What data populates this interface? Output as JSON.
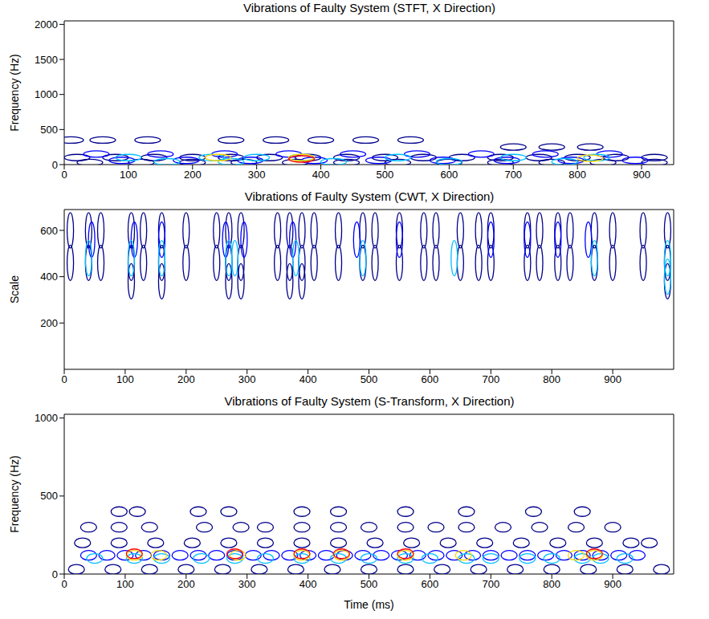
{
  "chart_data": [
    {
      "type": "contour",
      "title": "Vibrations of Faulty System (STFT, X Direction)",
      "ylabel": "Frequency (Hz)",
      "xlim": [
        0,
        950
      ],
      "xticks": [
        0,
        100,
        200,
        300,
        400,
        500,
        600,
        700,
        800,
        900
      ],
      "ylim": [
        0,
        2050
      ],
      "yticks": [
        0,
        500,
        1000,
        1500,
        2000
      ],
      "series": [
        {
          "color": "#00008b",
          "x": [
            10,
            60,
            130,
            260,
            330,
            400,
            470,
            540,
            700,
            760,
            820,
            20,
            80,
            140,
            200,
            260,
            320,
            380,
            440,
            500,
            560,
            620,
            680,
            740,
            800,
            860,
            920,
            40,
            120,
            200,
            280,
            360,
            440,
            520,
            600,
            680,
            760,
            840,
            920
          ],
          "values": [
            350,
            350,
            350,
            350,
            350,
            350,
            350,
            350,
            250,
            250,
            250,
            100,
            100,
            100,
            100,
            100,
            100,
            100,
            100,
            100,
            100,
            100,
            100,
            100,
            100,
            100,
            100,
            30,
            30,
            30,
            30,
            30,
            30,
            30,
            30,
            30,
            30,
            30,
            30
          ]
        },
        {
          "color": "#0000ff",
          "x": [
            50,
            150,
            250,
            350,
            450,
            550,
            650,
            750,
            850,
            90,
            190,
            290,
            390,
            490,
            590,
            690,
            790,
            890
          ],
          "values": [
            150,
            150,
            150,
            150,
            150,
            150,
            150,
            150,
            150,
            60,
            60,
            60,
            60,
            60,
            60,
            60,
            60,
            60
          ]
        },
        {
          "color": "#00bfff",
          "x": [
            100,
            230,
            300,
            370,
            520,
            700,
            830,
            160,
            260,
            420,
            600,
            780
          ],
          "values": [
            100,
            100,
            100,
            100,
            100,
            100,
            100,
            40,
            40,
            40,
            40,
            40
          ]
        },
        {
          "color": "#ffd700",
          "x": [
            240,
            370,
            820
          ],
          "values": [
            100,
            100,
            90
          ]
        },
        {
          "color": "#ff0000",
          "x": [
            370
          ],
          "values": [
            80
          ]
        }
      ]
    },
    {
      "type": "contour",
      "title": "Vibrations of Faulty System (CWT, X Direction)",
      "ylabel": "Scale",
      "xlim": [
        0,
        1000
      ],
      "xticks": [
        0,
        100,
        200,
        300,
        400,
        500,
        600,
        700,
        800,
        900
      ],
      "ylim": [
        0,
        690
      ],
      "yticks": [
        200,
        400,
        600
      ],
      "series": [
        {
          "color": "#00008b",
          "x": [
            10,
            40,
            60,
            110,
            130,
            160,
            200,
            250,
            270,
            290,
            350,
            370,
            390,
            410,
            450,
            490,
            510,
            550,
            590,
            610,
            650,
            680,
            700,
            760,
            780,
            810,
            830,
            870,
            900,
            950,
            990,
            10,
            40,
            60,
            110,
            130,
            160,
            200,
            250,
            270,
            290,
            350,
            370,
            390,
            410,
            450,
            490,
            510,
            550,
            590,
            610,
            650,
            680,
            700,
            760,
            780,
            810,
            830,
            870,
            900,
            950,
            990,
            110,
            160,
            270,
            290,
            370,
            390,
            990
          ],
          "values": [
            600,
            600,
            600,
            600,
            600,
            600,
            600,
            600,
            600,
            600,
            600,
            600,
            600,
            600,
            600,
            600,
            600,
            600,
            600,
            600,
            600,
            600,
            600,
            600,
            600,
            600,
            600,
            600,
            600,
            600,
            600,
            460,
            460,
            460,
            460,
            460,
            460,
            460,
            460,
            460,
            460,
            460,
            460,
            460,
            460,
            460,
            460,
            460,
            460,
            460,
            460,
            460,
            460,
            460,
            460,
            460,
            460,
            460,
            460,
            460,
            460,
            460,
            380,
            380,
            380,
            380,
            380,
            380,
            380
          ]
        },
        {
          "color": "#0000ff",
          "x": [
            45,
            115,
            160,
            265,
            295,
            375,
            480,
            550,
            700,
            760,
            810,
            860
          ],
          "values": [
            560,
            560,
            560,
            560,
            560,
            560,
            560,
            560,
            560,
            560,
            560,
            560
          ]
        },
        {
          "color": "#00bfff",
          "x": [
            40,
            110,
            160,
            270,
            280,
            380,
            490,
            640,
            870,
            990,
            990
          ],
          "values": [
            480,
            480,
            480,
            480,
            480,
            480,
            480,
            480,
            480,
            480,
            400
          ]
        }
      ]
    },
    {
      "type": "contour",
      "title": "Vibrations of Faulty System (S-Transform, X Direction)",
      "xlabel": "Time (ms)",
      "ylabel": "Frequency (Hz)",
      "xlim": [
        0,
        1000
      ],
      "xticks": [
        0,
        100,
        200,
        300,
        400,
        500,
        600,
        700,
        800,
        900
      ],
      "ylim": [
        0,
        1024
      ],
      "yticks": [
        0,
        500,
        1000
      ],
      "series": [
        {
          "color": "#00008b",
          "x": [
            40,
            90,
            140,
            230,
            290,
            330,
            390,
            450,
            500,
            560,
            610,
            660,
            720,
            780,
            840,
            900,
            90,
            120,
            220,
            270,
            390,
            450,
            560,
            660,
            770,
            850,
            30,
            90,
            150,
            210,
            270,
            330,
            390,
            450,
            510,
            570,
            630,
            690,
            750,
            810,
            870,
            930,
            960,
            20,
            80,
            140,
            200,
            260,
            320,
            380,
            440,
            500,
            560,
            620,
            680,
            740,
            800,
            860,
            920,
            980
          ],
          "values": [
            300,
            300,
            300,
            300,
            300,
            300,
            300,
            300,
            300,
            300,
            300,
            300,
            300,
            300,
            300,
            300,
            400,
            400,
            400,
            400,
            400,
            400,
            400,
            400,
            400,
            400,
            200,
            200,
            200,
            200,
            200,
            200,
            200,
            200,
            200,
            200,
            200,
            200,
            200,
            200,
            200,
            200,
            200,
            30,
            30,
            30,
            30,
            30,
            30,
            30,
            30,
            30,
            30,
            30,
            30,
            30,
            30,
            30,
            30,
            30
          ]
        },
        {
          "color": "#0000ff",
          "x": [
            40,
            70,
            100,
            130,
            160,
            190,
            220,
            250,
            280,
            310,
            340,
            370,
            400,
            430,
            460,
            490,
            520,
            550,
            580,
            610,
            640,
            670,
            700,
            730,
            760,
            790,
            820,
            850,
            880,
            910,
            940
          ],
          "values": [
            120,
            120,
            120,
            120,
            120,
            120,
            120,
            120,
            120,
            120,
            120,
            120,
            120,
            120,
            120,
            120,
            120,
            120,
            120,
            120,
            120,
            120,
            120,
            120,
            120,
            120,
            120,
            120,
            120,
            120,
            120
          ]
        },
        {
          "color": "#00bfff",
          "x": [
            50,
            115,
            160,
            225,
            280,
            330,
            390,
            450,
            500,
            560,
            600,
            660,
            700,
            760,
            800,
            850,
            880,
            920
          ],
          "values": [
            100,
            100,
            100,
            100,
            100,
            100,
            100,
            100,
            100,
            100,
            100,
            100,
            100,
            100,
            100,
            100,
            100,
            100
          ]
        },
        {
          "color": "#ffd700",
          "x": [
            115,
            155,
            285,
            390,
            455,
            560,
            655,
            840,
            870
          ],
          "values": [
            120,
            120,
            120,
            120,
            120,
            120,
            120,
            120,
            120
          ]
        },
        {
          "color": "#ff0000",
          "x": [
            115,
            280,
            390,
            455,
            560,
            870
          ],
          "values": [
            130,
            130,
            130,
            130,
            130,
            130
          ]
        }
      ]
    }
  ]
}
